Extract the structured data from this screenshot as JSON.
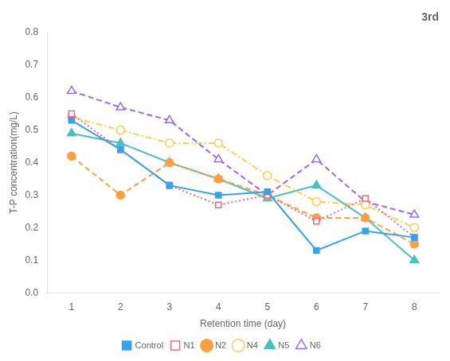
{
  "chart_data": {
    "type": "line",
    "title": "3rd",
    "xlabel": "Retention time (day)",
    "ylabel": "T-P concentration(mg/L)",
    "x": [
      1,
      2,
      3,
      4,
      5,
      6,
      7,
      8
    ],
    "series": [
      {
        "name": "Control",
        "values": [
          0.53,
          0.44,
          0.33,
          0.3,
          0.31,
          0.13,
          0.19,
          0.17
        ],
        "marker": "square",
        "line_style": "solid"
      },
      {
        "name": "N1",
        "values": [
          0.55,
          0.44,
          0.33,
          0.27,
          0.3,
          0.22,
          0.29,
          0.17
        ],
        "marker": "square-open",
        "line_style": "dotted"
      },
      {
        "name": "N2",
        "values": [
          0.42,
          0.3,
          0.4,
          0.35,
          0.3,
          0.23,
          0.23,
          0.15
        ],
        "marker": "circle",
        "line_style": "dashed"
      },
      {
        "name": "N4",
        "values": [
          0.54,
          0.5,
          0.46,
          0.46,
          0.36,
          0.28,
          0.27,
          0.2
        ],
        "marker": "circle-open",
        "line_style": "dashdot"
      },
      {
        "name": "N5",
        "values": [
          0.49,
          0.46,
          0.4,
          0.35,
          0.29,
          0.33,
          0.23,
          0.1
        ],
        "marker": "triangle",
        "line_style": "solid"
      },
      {
        "name": "N6",
        "values": [
          0.62,
          0.57,
          0.53,
          0.41,
          0.3,
          0.41,
          0.28,
          0.24
        ],
        "marker": "triangle-open",
        "line_style": "dashed"
      }
    ],
    "xlim": [
      0.5,
      8.5
    ],
    "xticks": [
      1,
      2,
      3,
      4,
      5,
      6,
      7,
      8
    ],
    "ylim": [
      0,
      0.8
    ],
    "yticks": [
      {
        "value": 0,
        "label": "0.0"
      },
      0.1,
      0.2,
      0.3,
      0.4,
      0.5,
      0.6,
      0.7,
      0.8
    ],
    "grid": false,
    "legend": "bottom"
  }
}
